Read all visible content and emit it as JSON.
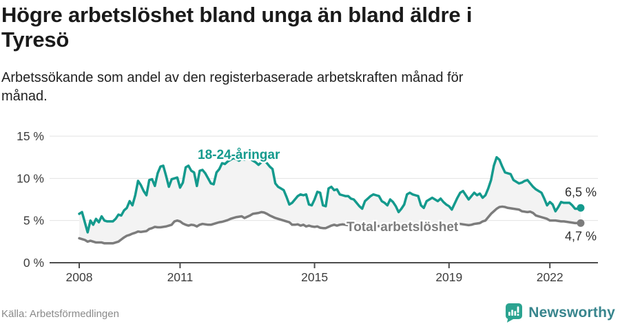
{
  "header": {
    "title_lines": [
      "Högre arbetslöshet bland unga än bland äldre i",
      "Tyresö"
    ],
    "subtitle_lines": [
      "Arbetssökande som andel av den registerbaserade arbetskraften månad för",
      "månad."
    ]
  },
  "footer": {
    "source": "Källa: Arbetsförmedlingen",
    "brand": "Newsworthy"
  },
  "colors": {
    "youth": "#149a8d",
    "total": "#7c7c7c",
    "band_fill": "#f3f3f3",
    "grid": "#e2e2e2",
    "axis": "#4c4c4c",
    "tick_text": "#3e3e3e",
    "value_text": "#2e2e2e",
    "brand_icon": "#2ba390",
    "brand_text": "#38858d"
  },
  "chart_data": {
    "type": "line",
    "unit": "%",
    "x_start": "2008-01",
    "x_end": "2022-12",
    "x_ticks": [
      {
        "year": 2008,
        "label": "2008"
      },
      {
        "year": 2011,
        "label": "2011"
      },
      {
        "year": 2015,
        "label": "2015"
      },
      {
        "year": 2019,
        "label": "2019"
      },
      {
        "year": 2022,
        "label": "2022"
      }
    ],
    "y_ticks": [
      {
        "v": 0,
        "label": "0 %"
      },
      {
        "v": 5,
        "label": "5 %"
      },
      {
        "v": 10,
        "label": "10 %"
      },
      {
        "v": 15,
        "label": "15 %"
      }
    ],
    "ylim": [
      0,
      16.5
    ],
    "grid": true,
    "legend_position": "inline-labels",
    "series": [
      {
        "key": "youth",
        "name": "18-24-åringar",
        "end_label": "6,5 %",
        "end_value": 6.5,
        "values": [
          5.8,
          6.0,
          4.8,
          3.6,
          5.0,
          4.5,
          5.2,
          4.8,
          5.5,
          5.0,
          4.9,
          4.9,
          4.9,
          5.2,
          5.7,
          5.6,
          6.2,
          6.5,
          7.3,
          6.8,
          8.0,
          9.7,
          9.2,
          8.5,
          8.0,
          9.8,
          9.9,
          9.1,
          10.6,
          11.4,
          11.5,
          10.3,
          9.0,
          9.9,
          10.0,
          10.1,
          8.9,
          9.5,
          11.3,
          11.5,
          10.9,
          10.7,
          9.1,
          10.9,
          11.0,
          10.6,
          10.0,
          9.4,
          9.3,
          10.7,
          11.1,
          11.8,
          11.7,
          12.0,
          12.2,
          12.4,
          12.3,
          12.1,
          12.3,
          12.2,
          12.4,
          12.3,
          12.1,
          11.9,
          11.6,
          11.9,
          12.1,
          11.8,
          11.4,
          11.1,
          9.4,
          9.0,
          8.8,
          8.6,
          7.8,
          6.9,
          7.1,
          7.5,
          7.9,
          8.1,
          8.0,
          8.1,
          6.9,
          6.8,
          7.5,
          8.4,
          8.3,
          6.8,
          6.7,
          8.8,
          9.0,
          8.6,
          8.7,
          8.1,
          8.0,
          7.9,
          7.9,
          7.6,
          7.5,
          7.1,
          6.7,
          6.4,
          7.3,
          7.6,
          7.9,
          8.1,
          8.0,
          7.9,
          7.3,
          7.1,
          6.8,
          7.5,
          7.2,
          6.7,
          6.0,
          6.4,
          6.9,
          8.1,
          8.3,
          8.1,
          8.0,
          7.9,
          6.8,
          6.5,
          7.3,
          7.5,
          7.7,
          7.5,
          7.3,
          7.6,
          7.2,
          6.9,
          6.7,
          6.3,
          7.0,
          7.7,
          8.3,
          8.5,
          8.0,
          7.5,
          7.9,
          8.3,
          8.0,
          8.2,
          7.7,
          8.0,
          8.8,
          9.8,
          11.5,
          12.5,
          12.2,
          11.4,
          10.7,
          10.6,
          10.5,
          9.8,
          9.6,
          9.4,
          9.5,
          9.7,
          9.8,
          9.4,
          9.0,
          8.7,
          8.5,
          8.3,
          7.6,
          6.8,
          7.2,
          6.9,
          6.1,
          6.6,
          7.2,
          7.1,
          7.1,
          7.1,
          6.8,
          6.4,
          6.4,
          6.5
        ]
      },
      {
        "key": "total",
        "name": "Total arbetslöshet",
        "end_label": "4,7 %",
        "end_value": 4.7,
        "values": [
          2.9,
          2.8,
          2.7,
          2.5,
          2.6,
          2.5,
          2.4,
          2.4,
          2.4,
          2.3,
          2.3,
          2.3,
          2.3,
          2.4,
          2.5,
          2.75,
          3.0,
          3.2,
          3.3,
          3.45,
          3.55,
          3.7,
          3.65,
          3.7,
          3.75,
          4.0,
          4.1,
          4.25,
          4.2,
          4.2,
          4.25,
          4.3,
          4.4,
          4.5,
          4.9,
          5.0,
          4.9,
          4.65,
          4.5,
          4.4,
          4.5,
          4.45,
          4.3,
          4.5,
          4.6,
          4.55,
          4.5,
          4.5,
          4.6,
          4.7,
          4.8,
          4.85,
          4.95,
          5.05,
          5.2,
          5.3,
          5.4,
          5.45,
          5.5,
          5.3,
          5.45,
          5.6,
          5.8,
          5.85,
          5.9,
          6.0,
          5.95,
          5.8,
          5.6,
          5.45,
          5.3,
          5.2,
          5.1,
          5.0,
          4.9,
          4.8,
          4.5,
          4.5,
          4.55,
          4.4,
          4.5,
          4.3,
          4.4,
          4.3,
          4.25,
          4.3,
          4.15,
          4.1,
          4.1,
          4.25,
          4.4,
          4.5,
          4.4,
          4.5,
          4.55,
          4.5,
          4.45,
          4.4,
          4.35,
          4.3,
          4.3,
          4.25,
          4.2,
          4.2,
          4.25,
          4.3,
          4.3,
          4.35,
          4.3,
          4.25,
          4.2,
          4.2,
          4.15,
          4.1,
          4.1,
          4.15,
          4.2,
          4.25,
          4.3,
          4.3,
          4.25,
          4.2,
          4.15,
          4.1,
          4.1,
          4.05,
          4.1,
          4.15,
          4.2,
          4.25,
          4.3,
          4.35,
          4.4,
          4.45,
          4.5,
          4.55,
          4.6,
          4.55,
          4.5,
          4.45,
          4.5,
          4.6,
          4.65,
          4.7,
          4.9,
          5.0,
          5.4,
          5.8,
          6.1,
          6.4,
          6.6,
          6.65,
          6.6,
          6.5,
          6.45,
          6.4,
          6.35,
          6.3,
          6.1,
          6.05,
          6.0,
          6.05,
          5.9,
          5.6,
          5.5,
          5.4,
          5.3,
          5.2,
          5.0,
          5.0,
          5.0,
          4.95,
          4.9,
          4.9,
          4.85,
          4.8,
          4.75,
          4.7,
          4.7,
          4.7
        ]
      }
    ]
  }
}
